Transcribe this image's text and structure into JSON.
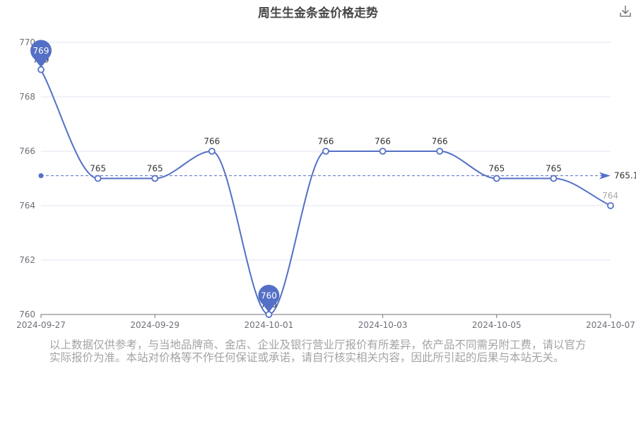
{
  "chart_data": {
    "type": "line",
    "title": "周生生金条金价格走势",
    "x": [
      "2024-09-27",
      "2024-09-28",
      "2024-09-29",
      "2024-09-30",
      "2024-10-01",
      "2024-10-02",
      "2024-10-03",
      "2024-10-04",
      "2024-10-05",
      "2024-10-06",
      "2024-10-07"
    ],
    "x_tick_labels": [
      "2024-09-27",
      "2024-09-29",
      "2024-10-01",
      "2024-10-03",
      "2024-10-05",
      "2024-10-07"
    ],
    "values": [
      769,
      765,
      765,
      766,
      760,
      766,
      766,
      766,
      765,
      765,
      764
    ],
    "data_labels": [
      "769",
      "765",
      "765",
      "766",
      "760",
      "766",
      "766",
      "766",
      "765",
      "765",
      "764"
    ],
    "ylim": [
      760,
      770
    ],
    "y_ticks": [
      760,
      762,
      764,
      766,
      768,
      770
    ],
    "y_tick_labels": [
      "760",
      "762",
      "764",
      "766",
      "768",
      "770"
    ],
    "average": 765.1,
    "average_label": "765.1",
    "max_marker": {
      "label": "769",
      "value": 769,
      "x": "2024-09-27"
    },
    "min_marker": {
      "label": "760",
      "value": 760,
      "x": "2024-10-01"
    },
    "line_color": "#5470c6",
    "grid": true,
    "smooth": true
  },
  "toolbar": {
    "download_icon": "download-icon"
  },
  "disclaimer": "以上数据仅供参考，与当地品牌商、金店、企业及银行营业厅报价有所差异，依产品不同需另附工费，请以官方实际报价为准。本站对价格等不作任何保证或承诺，请自行核实相关内容，因此所引起的后果与本站无关。"
}
